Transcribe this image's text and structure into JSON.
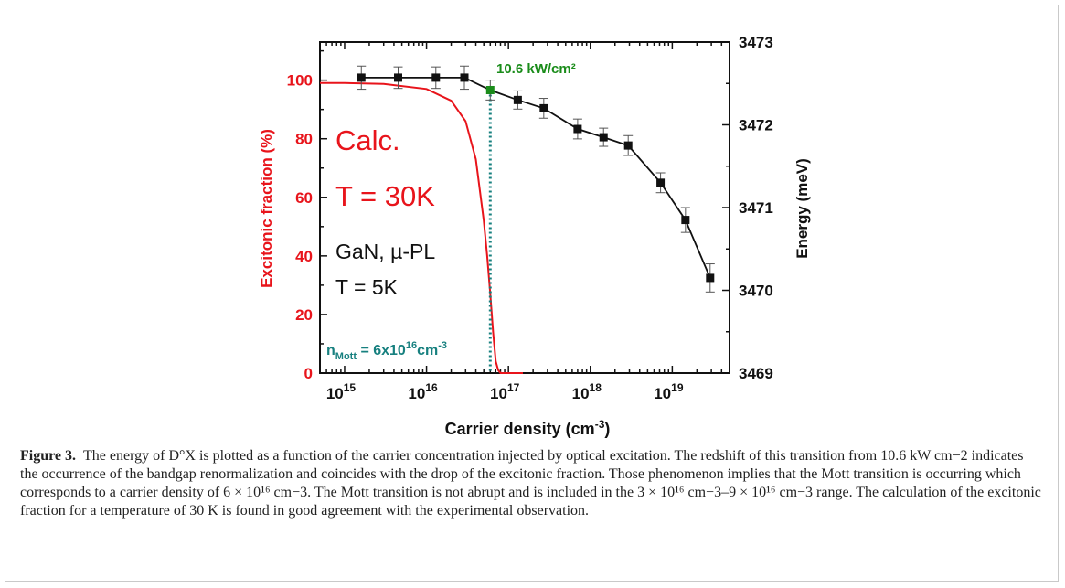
{
  "chart_data": {
    "type": "line",
    "x_scale": "log",
    "xlim": [
      500000000000000.0,
      5e+19
    ],
    "xlabel": "Carrier density (cm",
    "xlabel_sup": "-3",
    "xlabel_end": ")",
    "xticks": [
      {
        "value": 1000000000000000.0,
        "base": "10",
        "exp": "15"
      },
      {
        "value": 1e+16,
        "base": "10",
        "exp": "16"
      },
      {
        "value": 1e+17,
        "base": "10",
        "exp": "17"
      },
      {
        "value": 1e+18,
        "base": "10",
        "exp": "18"
      },
      {
        "value": 1e+19,
        "base": "10",
        "exp": "19"
      }
    ],
    "y_left": {
      "label": "Excitonic fraction (%)",
      "ylim": [
        0,
        113
      ],
      "ticks": [
        0,
        20,
        40,
        60,
        80,
        100
      ],
      "color": "#e8141b"
    },
    "y_right": {
      "label": "Energy (meV)",
      "ylim": [
        3469,
        3473
      ],
      "ticks": [
        3469,
        3470,
        3471,
        3472,
        3473
      ],
      "color": "#111111"
    },
    "series": [
      {
        "axis": "right",
        "color": "#111111",
        "x": [
          1600000000000000.0,
          4500000000000000.0,
          1.3e+16,
          2.9e+16,
          6e+16,
          1.3e+17,
          2.7e+17,
          7e+17,
          1.45e+18,
          2.9e+18,
          7.2e+18,
          1.45e+19,
          2.9e+19
        ],
        "y": [
          3472.57,
          3472.57,
          3472.57,
          3472.57,
          3472.42,
          3472.3,
          3472.2,
          3471.95,
          3471.85,
          3471.75,
          3471.3,
          3470.85,
          3470.15
        ],
        "err": [
          0.14,
          0.13,
          0.13,
          0.14,
          0.12,
          0.11,
          0.12,
          0.12,
          0.11,
          0.12,
          0.12,
          0.15,
          0.17
        ]
      },
      {
        "axis": "left",
        "color": "#e8141b",
        "x": [
          500000000000000.0,
          1000000000000000.0,
          3000000000000000.0,
          1e+16,
          2e+16,
          3e+16,
          4e+16,
          5e+16,
          5.5e+16,
          6e+16,
          6.5e+16,
          7e+16,
          7.5e+16,
          8e+16,
          1e+17,
          1.5e+17
        ],
        "y": [
          99,
          99,
          98.7,
          97,
          93,
          86,
          73,
          52,
          40,
          27,
          14,
          4,
          1,
          0,
          0,
          0
        ]
      }
    ],
    "highlight_point": {
      "x": 6e+16,
      "y": 3472.42,
      "color": "#1a8c1a"
    },
    "mott_line": {
      "x": 6e+16,
      "color": "#17807f"
    },
    "annotations": {
      "power": "10.6 kW/cm²",
      "calc": "Calc.",
      "calc_temp": "T = 30K",
      "sample": "GaN, µ-PL",
      "sample_temp": "T = 5K",
      "mott_pre": "n",
      "mott_sub": "Mott",
      "mott_mid": " = 6x10",
      "mott_sup1": "16",
      "mott_unit": "cm",
      "mott_sup2": "-3"
    }
  },
  "caption": {
    "label": "Figure 3.",
    "text": "The energy of D°X is plotted as a function of the carrier concentration injected by optical excitation. The redshift of this transition from 10.6 kW cm−2 indicates the occurrence of the bandgap renormalization and coincides with the drop of the excitonic fraction. Those phenomenon implies that the Mott transition is occurring which corresponds to a carrier density of 6 × 10¹⁶ cm−3. The Mott transition is not abrupt and is included in the 3 × 10¹⁶ cm−3–9 × 10¹⁶ cm−3 range. The calculation of the excitonic fraction for a temperature of 30 K is found in good agreement with the experimental observation."
  }
}
